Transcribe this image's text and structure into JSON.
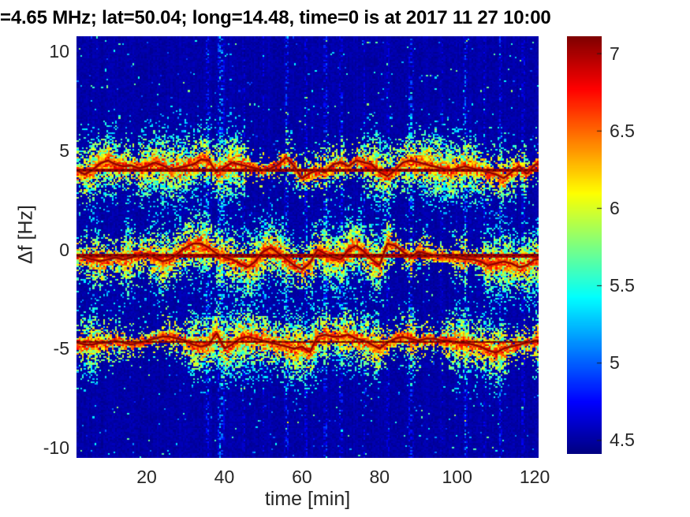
{
  "chart_data": {
    "type": "heatmap",
    "subtype": "doppler-shift-spectrogram",
    "title": "=4.65 MHz;  lat=50.04; long=14.48, time=0 is at 2017 11 27 10:00",
    "xlabel": "time [min]",
    "ylabel": "Δf [Hz]",
    "xlim": [
      1.9,
      121
    ],
    "ylim": [
      -10.52,
      10.77
    ],
    "xticks": [
      20,
      40,
      60,
      80,
      100,
      120
    ],
    "xtick_labels": [
      "20",
      "40",
      "60",
      "80",
      "100",
      "120"
    ],
    "yticks": [
      10,
      5,
      0,
      -5,
      -10
    ],
    "ytick_labels": [
      "10",
      "5",
      "0",
      "-5",
      "-10"
    ],
    "grid": false,
    "colormap": "jet",
    "background_level": 4.5,
    "colorbar": {
      "range": [
        4.41,
        7.11
      ],
      "ticks": [
        7,
        6.5,
        6,
        5.5,
        5,
        4.5
      ],
      "tick_labels": [
        "7",
        "6.5",
        "6",
        "5.5",
        "5",
        "4.5"
      ],
      "position": "right"
    },
    "trace_t_step_min": 2,
    "traces": [
      {
        "name": "upper-doppler-trace",
        "mean_hz": 4.0,
        "delta_f_hz": [
          4.2,
          4.0,
          3.8,
          4.0,
          4.35,
          4.5,
          4.3,
          4.2,
          4.25,
          4.1,
          4.2,
          4.4,
          4.25,
          4.05,
          4.1,
          4.2,
          4.3,
          4.55,
          4.5,
          3.9,
          4.15,
          4.4,
          4.3,
          4.2,
          4.1,
          4.0,
          4.1,
          4.3,
          4.65,
          4.2,
          3.6,
          3.85,
          4.0,
          3.9,
          4.3,
          4.4,
          4.2,
          4.5,
          4.4,
          4.3,
          3.9,
          3.7,
          4.0,
          4.4,
          4.5,
          4.4,
          4.3,
          4.2,
          4.1,
          4.0,
          4.1,
          4.2,
          4.1,
          4.0,
          3.9,
          3.8,
          3.6,
          3.9,
          4.2,
          3.8,
          4.3
        ]
      },
      {
        "name": "central-doppler-trace",
        "mean_hz": -0.3,
        "delta_f_hz": [
          -0.1,
          -0.3,
          -0.4,
          -0.5,
          -0.6,
          -0.5,
          -0.4,
          -0.5,
          -0.4,
          -0.3,
          -0.2,
          -0.4,
          -0.6,
          -0.5,
          -0.2,
          0.1,
          0.3,
          0.3,
          0.1,
          -0.2,
          -0.4,
          -0.5,
          -0.7,
          -0.9,
          -0.6,
          -0.1,
          0.1,
          -0.2,
          -0.5,
          -0.8,
          -1.0,
          -0.7,
          0.0,
          -0.2,
          -0.4,
          -0.5,
          0.0,
          0.2,
          -0.1,
          -0.5,
          -0.8,
          0.3,
          0.2,
          -0.1,
          -0.4,
          -0.1,
          -0.2,
          -0.3,
          -0.3,
          -0.4,
          -0.4,
          -0.5,
          -0.5,
          -0.6,
          -0.8,
          -0.7,
          -0.6,
          -0.7,
          -0.9,
          -0.8,
          -0.5
        ]
      },
      {
        "name": "lower-doppler-trace",
        "mean_hz": -4.65,
        "delta_f_hz": [
          -4.6,
          -4.7,
          -4.8,
          -4.8,
          -4.7,
          -4.7,
          -4.6,
          -4.7,
          -4.8,
          -4.7,
          -4.6,
          -4.5,
          -4.4,
          -4.4,
          -4.5,
          -4.6,
          -4.8,
          -4.9,
          -4.8,
          -4.2,
          -5.0,
          -4.8,
          -4.5,
          -4.4,
          -4.5,
          -4.6,
          -4.7,
          -4.8,
          -4.9,
          -5.0,
          -4.9,
          -5.2,
          -4.4,
          -4.3,
          -4.4,
          -4.4,
          -4.3,
          -4.5,
          -4.6,
          -4.8,
          -5.0,
          -4.7,
          -4.5,
          -4.4,
          -4.5,
          -4.6,
          -4.5,
          -4.5,
          -4.6,
          -4.6,
          -4.7,
          -4.7,
          -4.8,
          -4.9,
          -5.1,
          -5.2,
          -5.0,
          -4.9,
          -4.8,
          -4.7,
          -4.6
        ]
      }
    ],
    "interference_events": [
      {
        "t": 35.5,
        "width": 0.5,
        "strength": 0.5
      },
      {
        "t": 39,
        "width": 0.7,
        "strength": 0.9
      },
      {
        "t": 45,
        "width": 0.35,
        "strength": 0.3
      },
      {
        "t": 50,
        "width": 0.3,
        "strength": 0.25
      },
      {
        "t": 56,
        "width": 0.5,
        "strength": 0.6
      },
      {
        "t": 61,
        "width": 0.35,
        "strength": 0.4
      },
      {
        "t": 66,
        "width": 0.45,
        "strength": 0.55
      },
      {
        "t": 70,
        "width": 0.35,
        "strength": 0.45
      },
      {
        "t": 76,
        "width": 0.3,
        "strength": 0.3
      },
      {
        "t": 82,
        "width": 0.3,
        "strength": 0.35
      },
      {
        "t": 88,
        "width": 0.5,
        "strength": 0.55
      },
      {
        "t": 96,
        "width": 0.3,
        "strength": 0.3
      },
      {
        "t": 102,
        "width": 0.45,
        "strength": 0.6
      },
      {
        "t": 107,
        "width": 0.3,
        "strength": 0.3
      },
      {
        "t": 111,
        "width": 0.4,
        "strength": 0.45
      },
      {
        "t": 117,
        "width": 0.35,
        "strength": 0.35
      }
    ]
  }
}
